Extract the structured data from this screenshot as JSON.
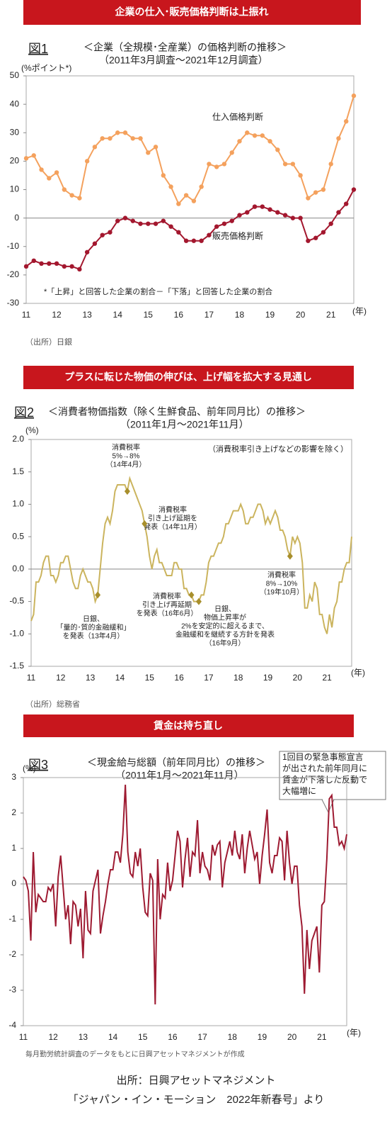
{
  "banners": [
    "企業の仕入･販売価格判断は上振れ",
    "プラスに転じた物価の伸びは、上げ幅を拡大する見通し",
    "賃金は持ち直し"
  ],
  "footer": [
    "出所：日興アセットマネジメント",
    "「ジャパン・イン・モーション　2022年新春号」より"
  ],
  "chart_data": [
    {
      "type": "line",
      "figure": "図1",
      "title": "＜企業（全規模･全産業）の価格判断の推移＞",
      "subtitle": "（2011年3月調査～2021年12月調査）",
      "y_label": "(%ポイント*)",
      "x_label": "(年)",
      "footnote": "*「上昇」と回答した企業の割合－「下落」と回答した企業の割合",
      "source": "（出所）日銀",
      "categories": [
        "11",
        null,
        null,
        null,
        "12",
        null,
        null,
        null,
        "13",
        null,
        null,
        null,
        "14",
        null,
        null,
        null,
        "15",
        null,
        null,
        null,
        "16",
        null,
        null,
        null,
        "17",
        null,
        null,
        null,
        "18",
        null,
        null,
        null,
        "19",
        null,
        null,
        null,
        "20",
        null,
        null,
        null,
        "21",
        null,
        null,
        null
      ],
      "series": [
        {
          "name": "仕入価格判断",
          "color": "#f4a15d",
          "marker": "circle",
          "values": [
            21,
            22,
            17,
            14,
            16,
            10,
            8,
            7,
            20,
            25,
            28,
            28,
            30,
            30,
            28,
            28,
            23,
            25,
            15,
            11,
            5,
            8,
            6,
            11,
            19,
            18,
            19,
            23,
            27,
            30,
            29,
            29,
            27,
            24,
            19,
            19,
            15,
            7,
            9,
            10,
            19,
            28,
            34,
            43
          ]
        },
        {
          "name": "販売価格判断",
          "color": "#a3172e",
          "marker": "circle",
          "values": [
            -17,
            -15,
            -16,
            -16,
            -16,
            -17,
            -17,
            -18,
            -12,
            -9,
            -6,
            -5,
            -1,
            0,
            -1,
            -2,
            -2,
            -2,
            -1,
            -3,
            -5,
            -8,
            -8,
            -8,
            -6,
            -3,
            -2,
            -1,
            1,
            2,
            4,
            4,
            3,
            2,
            1,
            0,
            0,
            -8,
            -7,
            -5,
            -2,
            2,
            5,
            10
          ]
        }
      ],
      "ylim": [
        -30,
        50
      ],
      "yticks": [
        50,
        40,
        30,
        20,
        10,
        0,
        -10,
        -20,
        -30
      ]
    },
    {
      "type": "line",
      "figure": "図2",
      "title": "＜消費者物価指数（除く生鮮食品、前年同月比）の推移＞",
      "subtitle": "（2011年1月～2021年11月）",
      "y_label": "(%)",
      "x_label": "(年)",
      "note": "（消費税率引き上げなどの影響を除く）",
      "source": "（出所）総務省",
      "categories": [
        "11",
        null,
        null,
        null,
        null,
        null,
        null,
        null,
        null,
        null,
        null,
        null,
        "12",
        null,
        null,
        null,
        null,
        null,
        null,
        null,
        null,
        null,
        null,
        null,
        "13",
        null,
        null,
        null,
        null,
        null,
        null,
        null,
        null,
        null,
        null,
        null,
        "14",
        null,
        null,
        null,
        null,
        null,
        null,
        null,
        null,
        null,
        null,
        null,
        "15",
        null,
        null,
        null,
        null,
        null,
        null,
        null,
        null,
        null,
        null,
        null,
        "16",
        null,
        null,
        null,
        null,
        null,
        null,
        null,
        null,
        null,
        null,
        null,
        "17",
        null,
        null,
        null,
        null,
        null,
        null,
        null,
        null,
        null,
        null,
        null,
        "18",
        null,
        null,
        null,
        null,
        null,
        null,
        null,
        null,
        null,
        null,
        null,
        "19",
        null,
        null,
        null,
        null,
        null,
        null,
        null,
        null,
        null,
        null,
        null,
        "20",
        null,
        null,
        null,
        null,
        null,
        null,
        null,
        null,
        null,
        null,
        null,
        "21",
        null,
        null,
        null,
        null,
        null,
        null,
        null,
        null,
        null,
        null
      ],
      "series": [
        {
          "color": "#cbb45e",
          "values": [
            -0.8,
            -0.7,
            -0.2,
            -0.2,
            -0.1,
            0.1,
            0.2,
            0.2,
            -0.1,
            -0.1,
            -0.2,
            -0.1,
            0.1,
            0.1,
            0.2,
            0.2,
            0.0,
            -0.2,
            -0.3,
            -0.3,
            -0.1,
            0.0,
            -0.1,
            -0.2,
            -0.2,
            -0.3,
            -0.5,
            -0.4,
            0.0,
            0.4,
            0.7,
            0.8,
            0.7,
            0.9,
            1.2,
            1.3,
            1.3,
            1.3,
            1.3,
            1.2,
            1.4,
            1.3,
            1.2,
            1.1,
            1.0,
            0.9,
            0.7,
            0.5,
            0.2,
            0.0,
            0.2,
            0.3,
            0.1,
            0.1,
            0.0,
            -0.1,
            -0.1,
            -0.1,
            0.1,
            0.1,
            0.0,
            0.0,
            -0.3,
            -0.3,
            -0.4,
            -0.4,
            -0.5,
            -0.5,
            -0.5,
            -0.4,
            -0.4,
            -0.2,
            0.1,
            0.2,
            0.2,
            0.3,
            0.4,
            0.4,
            0.5,
            0.7,
            0.7,
            0.8,
            0.9,
            0.9,
            0.9,
            1.0,
            0.9,
            0.7,
            0.7,
            0.8,
            0.8,
            0.9,
            1.0,
            1.0,
            0.9,
            0.7,
            0.8,
            0.7,
            0.8,
            0.9,
            0.8,
            0.6,
            0.6,
            0.5,
            0.3,
            0.2,
            0.5,
            0.4,
            0.5,
            0.4,
            0.1,
            -0.6,
            -0.6,
            -0.4,
            -0.5,
            -0.2,
            -0.3,
            -0.7,
            -0.7,
            -0.9,
            -1.0,
            -0.7,
            -0.9,
            -0.6,
            -0.5,
            -0.2,
            -0.2,
            0.0,
            0.1,
            0.1,
            0.5
          ]
        }
      ],
      "annotations": [
        {
          "lines": [
            "消費税率",
            "5%→8%",
            "（14年4月）"
          ],
          "point": 39
        },
        {
          "lines": [
            "消費税率",
            "引き上げ延期を",
            "発表（14年11月）"
          ],
          "point": 46
        },
        {
          "lines": [
            "消費税率",
            "引き上げ再延期",
            "を発表（16年6月）"
          ],
          "point": 65
        },
        {
          "lines": [
            "日銀、",
            "「量的･質的金融緩和」",
            "を発表（13年4月）"
          ],
          "point": 27
        },
        {
          "lines": [
            "日銀、",
            "物価上昇率が",
            "2%を安定的に超えるまで、",
            "金融緩和を継続する方針を発表",
            "（16年9月）"
          ],
          "point": 68
        },
        {
          "lines": [
            "消費税率",
            "8%→10%",
            "（19年10月）"
          ],
          "point": 105
        }
      ],
      "ylim": [
        -1.5,
        2
      ],
      "yticks": [
        {
          "value": 2,
          "label": "2.0"
        },
        1.5,
        {
          "value": 1,
          "label": "1.0"
        },
        0.5,
        {
          "value": 0,
          "label": "0.0"
        },
        -0.5,
        {
          "value": -1,
          "label": "-1.0"
        },
        -1.5
      ]
    },
    {
      "type": "line",
      "figure": "図3",
      "title": "＜現金給与総額（前年同月比）の推移＞",
      "subtitle": "（2011年1月～2021年11月）",
      "y_label": "(%)",
      "x_label": "(年)",
      "source": "毎月勤労統計調査のデータをもとに日興アセットマネジメントが作成",
      "callout": [
        "1回目の緊急事態宣言",
        "が出された前年同月に",
        "賃金が下落した反動で",
        "大幅増に"
      ],
      "categories": [
        "11",
        null,
        null,
        null,
        null,
        null,
        null,
        null,
        null,
        null,
        null,
        null,
        "12",
        null,
        null,
        null,
        null,
        null,
        null,
        null,
        null,
        null,
        null,
        null,
        "13",
        null,
        null,
        null,
        null,
        null,
        null,
        null,
        null,
        null,
        null,
        null,
        "14",
        null,
        null,
        null,
        null,
        null,
        null,
        null,
        null,
        null,
        null,
        null,
        "15",
        null,
        null,
        null,
        null,
        null,
        null,
        null,
        null,
        null,
        null,
        null,
        "16",
        null,
        null,
        null,
        null,
        null,
        null,
        null,
        null,
        null,
        null,
        null,
        "17",
        null,
        null,
        null,
        null,
        null,
        null,
        null,
        null,
        null,
        null,
        null,
        "18",
        null,
        null,
        null,
        null,
        null,
        null,
        null,
        null,
        null,
        null,
        null,
        "19",
        null,
        null,
        null,
        null,
        null,
        null,
        null,
        null,
        null,
        null,
        null,
        "20",
        null,
        null,
        null,
        null,
        null,
        null,
        null,
        null,
        null,
        null,
        null,
        "21",
        null,
        null,
        null,
        null,
        null,
        null,
        null,
        null,
        null,
        null
      ],
      "series": [
        {
          "color": "#9e1b32",
          "values": [
            0.2,
            0.1,
            -0.2,
            -1.6,
            0.9,
            -0.8,
            -0.3,
            -0.4,
            -0.5,
            -0.5,
            -0.1,
            -0.2,
            0.0,
            -1.2,
            0.2,
            0.8,
            -0.1,
            -1.0,
            -0.6,
            -1.7,
            -0.5,
            -0.6,
            -1.2,
            -0.7,
            -2.1,
            -0.2,
            -1.3,
            -1.4,
            -0.2,
            0.1,
            0.4,
            -1.4,
            -0.9,
            -0.5,
            0.0,
            0.4,
            0.4,
            0.9,
            0.9,
            0.6,
            1.4,
            2.8,
            0.9,
            0.3,
            0.2,
            0.9,
            0.5,
            1.0,
            -0.1,
            -0.8,
            -0.9,
            0.3,
            0.1,
            -3.4,
            0.7,
            -1.0,
            -0.3,
            -0.4,
            0.6,
            -0.2,
            0.1,
            0.8,
            1.5,
            1.2,
            -0.1,
            0.7,
            1.3,
            0.2,
            0.9,
            0.8,
            1.8,
            0.3,
            0.9,
            0.5,
            0.4,
            0.1,
            1.1,
            0.8,
            1.1,
            1.2,
            -0.1,
            0.6,
            0.9,
            1.2,
            0.8,
            1.5,
            0.9,
            0.7,
            1.4,
            0.3,
            1.0,
            1.5,
            1.1,
            0.7,
            0.9,
            0.0,
            0.8,
            1.4,
            2.1,
            0.6,
            0.3,
            0.8,
            0.8,
            1.3,
            1.2,
            0.1,
            1.5,
            0.6,
            0.0,
            0.5,
            0.5,
            -0.6,
            -1.2,
            -3.1,
            -1.3,
            -2.4,
            -1.6,
            -1.4,
            -1.2,
            -2.5,
            -0.6,
            -0.5,
            0.7,
            2.4,
            2.5,
            1.6,
            1.6,
            1.1,
            1.2,
            1.0,
            1.4
          ]
        }
      ],
      "ylim": [
        -4,
        3
      ],
      "yticks": [
        3,
        2,
        1,
        0,
        -1,
        -2,
        -3,
        -4
      ]
    }
  ]
}
